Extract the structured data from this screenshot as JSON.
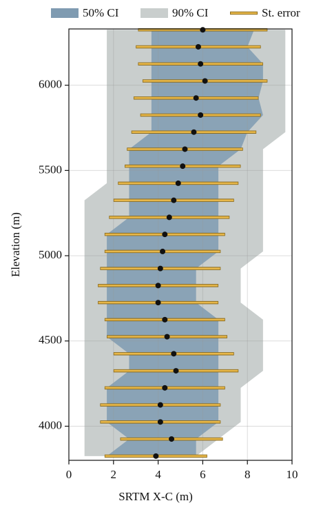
{
  "chart_data": {
    "type": "interval",
    "xlabel": "SRTM X-C (m)",
    "ylabel": "Elevation (m)",
    "xlim": [
      0,
      10
    ],
    "ylim": [
      3800,
      6330
    ],
    "xticks": [
      0,
      2,
      4,
      6,
      8,
      10
    ],
    "yticks": [
      4000,
      4500,
      5000,
      5500,
      6000
    ],
    "grid": true,
    "y": [
      6325,
      6225,
      6125,
      6025,
      5925,
      5825,
      5725,
      5625,
      5525,
      5425,
      5325,
      5225,
      5125,
      5025,
      4925,
      4825,
      4725,
      4625,
      4525,
      4425,
      4325,
      4225,
      4125,
      4025,
      3925,
      3825
    ],
    "series": [
      {
        "name": "50% CI",
        "color": "#7f9bb1",
        "lower": [
          3.7,
          3.7,
          3.7,
          3.7,
          3.7,
          3.7,
          3.7,
          2.7,
          2.7,
          2.7,
          2.7,
          2.7,
          1.7,
          1.7,
          1.7,
          1.7,
          1.7,
          1.7,
          1.7,
          2.7,
          2.7,
          1.7,
          1.7,
          1.7,
          2.7,
          1.7
        ],
        "upper": [
          8.3,
          8.0,
          8.7,
          8.7,
          8.5,
          8.7,
          8.0,
          7.7,
          6.7,
          6.7,
          6.7,
          6.7,
          6.7,
          6.7,
          5.7,
          5.7,
          5.7,
          6.7,
          6.7,
          6.7,
          6.7,
          6.7,
          6.7,
          6.7,
          5.7,
          5.7
        ]
      },
      {
        "name": "90% CI",
        "color": "#c9cecd",
        "lower": [
          1.7,
          1.7,
          1.7,
          1.7,
          1.7,
          1.7,
          1.7,
          1.7,
          1.7,
          1.7,
          0.7,
          0.7,
          0.7,
          0.7,
          0.7,
          0.7,
          0.7,
          0.7,
          0.7,
          0.7,
          0.7,
          0.7,
          0.7,
          0.7,
          0.7,
          0.7
        ],
        "upper": [
          9.7,
          9.7,
          9.7,
          9.7,
          9.7,
          9.7,
          9.7,
          8.7,
          8.7,
          8.7,
          8.7,
          8.7,
          8.7,
          8.7,
          7.7,
          7.7,
          7.7,
          8.7,
          8.7,
          8.7,
          8.7,
          7.7,
          7.7,
          7.7,
          6.7,
          5.7
        ]
      },
      {
        "name": "St. error",
        "color": "#e8b84a",
        "values": [
          6.0,
          5.8,
          5.9,
          6.1,
          5.7,
          5.9,
          5.6,
          5.2,
          5.1,
          4.9,
          4.7,
          4.5,
          4.3,
          4.2,
          4.1,
          4.0,
          4.0,
          4.3,
          4.4,
          4.7,
          4.8,
          4.3,
          4.1,
          4.1,
          4.6,
          3.9
        ],
        "errors": [
          2.9,
          2.8,
          2.8,
          2.8,
          2.8,
          2.7,
          2.8,
          2.6,
          2.6,
          2.7,
          2.7,
          2.7,
          2.7,
          2.6,
          2.7,
          2.7,
          2.7,
          2.7,
          2.7,
          2.7,
          2.8,
          2.7,
          2.7,
          2.7,
          2.3,
          2.3
        ]
      }
    ],
    "point_color": "#111111"
  }
}
